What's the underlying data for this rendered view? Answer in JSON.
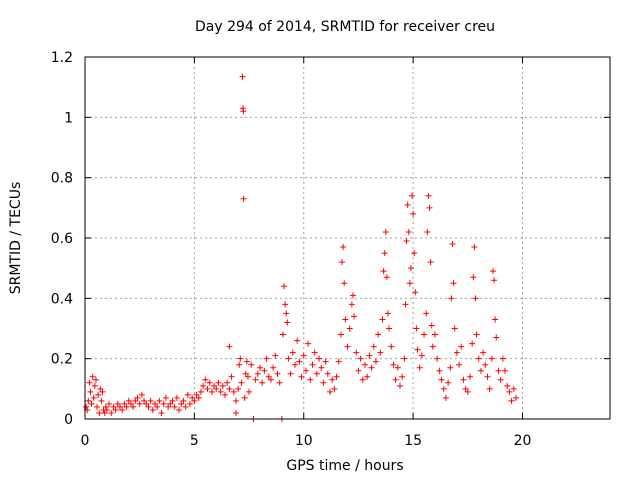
{
  "chart_data": {
    "type": "scatter",
    "title": "Day 294 of 2014, SRMTID for receiver creu",
    "xlabel": "GPS time / hours",
    "ylabel": "SRMTID / TECUs",
    "xlim": [
      0,
      24
    ],
    "ylim": [
      0,
      1.2
    ],
    "xticks": [
      0,
      5,
      10,
      15,
      20
    ],
    "yticks": [
      0,
      0.2,
      0.4,
      0.6,
      0.8,
      1,
      1.2
    ],
    "xtick_labels": [
      "0",
      "5",
      "10",
      "15",
      "20"
    ],
    "ytick_labels": [
      "0",
      "0.2",
      "0.4",
      "0.6",
      "0.8",
      "1",
      "1.2"
    ],
    "grid": true,
    "marker": "+",
    "series": [
      {
        "name": "SRMTID",
        "color": "#ff0000",
        "points": [
          [
            0.05,
            0.04
          ],
          [
            0.1,
            0.03
          ],
          [
            0.15,
            0.06
          ],
          [
            0.2,
            0.12
          ],
          [
            0.25,
            0.09
          ],
          [
            0.3,
            0.05
          ],
          [
            0.35,
            0.14
          ],
          [
            0.4,
            0.07
          ],
          [
            0.45,
            0.11
          ],
          [
            0.5,
            0.13
          ],
          [
            0.55,
            0.04
          ],
          [
            0.6,
            0.08
          ],
          [
            0.65,
            0.02
          ],
          [
            0.7,
            0.1
          ],
          [
            0.75,
            0.06
          ],
          [
            0.8,
            0.09
          ],
          [
            0.85,
            0.03
          ],
          [
            0.9,
            0.02
          ],
          [
            0.95,
            0.04
          ],
          [
            1.0,
            0.03
          ],
          [
            1.1,
            0.05
          ],
          [
            1.2,
            0.02
          ],
          [
            1.3,
            0.04
          ],
          [
            1.4,
            0.03
          ],
          [
            1.5,
            0.05
          ],
          [
            1.6,
            0.04
          ],
          [
            1.7,
            0.03
          ],
          [
            1.8,
            0.05
          ],
          [
            1.9,
            0.04
          ],
          [
            2.0,
            0.06
          ],
          [
            2.1,
            0.05
          ],
          [
            2.2,
            0.04
          ],
          [
            2.3,
            0.06
          ],
          [
            2.4,
            0.07
          ],
          [
            2.5,
            0.05
          ],
          [
            2.6,
            0.08
          ],
          [
            2.7,
            0.06
          ],
          [
            2.8,
            0.05
          ],
          [
            2.9,
            0.04
          ],
          [
            3.0,
            0.06
          ],
          [
            3.1,
            0.03
          ],
          [
            3.2,
            0.05
          ],
          [
            3.3,
            0.04
          ],
          [
            3.4,
            0.06
          ],
          [
            3.5,
            0.02
          ],
          [
            3.6,
            0.05
          ],
          [
            3.7,
            0.07
          ],
          [
            3.8,
            0.04
          ],
          [
            3.9,
            0.05
          ],
          [
            4.0,
            0.06
          ],
          [
            4.1,
            0.04
          ],
          [
            4.2,
            0.07
          ],
          [
            4.3,
            0.03
          ],
          [
            4.4,
            0.05
          ],
          [
            4.5,
            0.06
          ],
          [
            4.6,
            0.04
          ],
          [
            4.7,
            0.08
          ],
          [
            4.8,
            0.05
          ],
          [
            4.9,
            0.07
          ],
          [
            5.0,
            0.06
          ],
          [
            5.1,
            0.08
          ],
          [
            5.2,
            0.07
          ],
          [
            5.3,
            0.09
          ],
          [
            5.4,
            0.11
          ],
          [
            5.5,
            0.13
          ],
          [
            5.6,
            0.1
          ],
          [
            5.7,
            0.12
          ],
          [
            5.8,
            0.09
          ],
          [
            5.9,
            0.11
          ],
          [
            6.0,
            0.1
          ],
          [
            6.1,
            0.12
          ],
          [
            6.2,
            0.09
          ],
          [
            6.3,
            0.11
          ],
          [
            6.4,
            0.08
          ],
          [
            6.5,
            0.12
          ],
          [
            6.6,
            0.1
          ],
          [
            6.7,
            0.14
          ],
          [
            6.8,
            0.09
          ],
          [
            6.9,
            0.06
          ],
          [
            7.0,
            0.1
          ],
          [
            6.6,
            0.24
          ],
          [
            6.9,
            0.02
          ],
          [
            7.05,
            0.18
          ],
          [
            7.1,
            0.2
          ],
          [
            7.15,
            0.12
          ],
          [
            7.2,
            1.135
          ],
          [
            7.22,
            1.03
          ],
          [
            7.24,
            1.02
          ],
          [
            7.25,
            0.73
          ],
          [
            7.3,
            0.07
          ],
          [
            7.35,
            0.15
          ],
          [
            7.4,
            0.19
          ],
          [
            7.45,
            0.14
          ],
          [
            7.5,
            0.09
          ],
          [
            7.6,
            0.18
          ],
          [
            7.7,
            0.0
          ],
          [
            7.8,
            0.13
          ],
          [
            7.9,
            0.15
          ],
          [
            8.0,
            0.17
          ],
          [
            8.1,
            0.12
          ],
          [
            8.2,
            0.16
          ],
          [
            8.3,
            0.2
          ],
          [
            8.4,
            0.14
          ],
          [
            8.5,
            0.13
          ],
          [
            8.6,
            0.17
          ],
          [
            8.7,
            0.21
          ],
          [
            8.8,
            0.15
          ],
          [
            8.9,
            0.12
          ],
          [
            9.0,
            0.0
          ],
          [
            9.05,
            0.28
          ],
          [
            9.1,
            0.44
          ],
          [
            9.15,
            0.38
          ],
          [
            9.2,
            0.35
          ],
          [
            9.25,
            0.32
          ],
          [
            9.3,
            0.2
          ],
          [
            9.4,
            0.15
          ],
          [
            9.5,
            0.22
          ],
          [
            9.6,
            0.18
          ],
          [
            9.7,
            0.26
          ],
          [
            9.8,
            0.19
          ],
          [
            9.9,
            0.14
          ],
          [
            10.0,
            0.21
          ],
          [
            10.1,
            0.16
          ],
          [
            10.2,
            0.25
          ],
          [
            10.3,
            0.13
          ],
          [
            10.4,
            0.18
          ],
          [
            10.5,
            0.22
          ],
          [
            10.6,
            0.15
          ],
          [
            10.7,
            0.2
          ],
          [
            10.8,
            0.17
          ],
          [
            10.9,
            0.12
          ],
          [
            11.0,
            0.19
          ],
          [
            11.1,
            0.15
          ],
          [
            11.2,
            0.09
          ],
          [
            11.3,
            0.13
          ],
          [
            11.4,
            0.1
          ],
          [
            11.5,
            0.14
          ],
          [
            11.6,
            0.19
          ],
          [
            11.7,
            0.28
          ],
          [
            11.75,
            0.52
          ],
          [
            11.8,
            0.57
          ],
          [
            11.85,
            0.45
          ],
          [
            11.9,
            0.33
          ],
          [
            12.0,
            0.24
          ],
          [
            12.1,
            0.3
          ],
          [
            12.2,
            0.38
          ],
          [
            12.25,
            0.41
          ],
          [
            12.3,
            0.34
          ],
          [
            12.4,
            0.22
          ],
          [
            12.5,
            0.16
          ],
          [
            12.6,
            0.2
          ],
          [
            12.7,
            0.13
          ],
          [
            12.8,
            0.18
          ],
          [
            12.9,
            0.14
          ],
          [
            13.0,
            0.21
          ],
          [
            13.1,
            0.17
          ],
          [
            13.2,
            0.24
          ],
          [
            13.3,
            0.19
          ],
          [
            13.4,
            0.28
          ],
          [
            13.5,
            0.22
          ],
          [
            13.6,
            0.33
          ],
          [
            13.65,
            0.49
          ],
          [
            13.7,
            0.55
          ],
          [
            13.75,
            0.62
          ],
          [
            13.8,
            0.47
          ],
          [
            13.85,
            0.35
          ],
          [
            13.9,
            0.3
          ],
          [
            14.0,
            0.24
          ],
          [
            14.1,
            0.18
          ],
          [
            14.2,
            0.13
          ],
          [
            14.3,
            0.17
          ],
          [
            14.4,
            0.11
          ],
          [
            14.5,
            0.14
          ],
          [
            14.6,
            0.2
          ],
          [
            14.65,
            0.38
          ],
          [
            14.7,
            0.59
          ],
          [
            14.75,
            0.71
          ],
          [
            14.8,
            0.62
          ],
          [
            14.85,
            0.45
          ],
          [
            14.9,
            0.5
          ],
          [
            14.95,
            0.74
          ],
          [
            15.0,
            0.68
          ],
          [
            15.05,
            0.55
          ],
          [
            15.1,
            0.42
          ],
          [
            15.15,
            0.3
          ],
          [
            15.2,
            0.23
          ],
          [
            15.3,
            0.17
          ],
          [
            15.4,
            0.21
          ],
          [
            15.5,
            0.28
          ],
          [
            15.6,
            0.35
          ],
          [
            15.65,
            0.62
          ],
          [
            15.7,
            0.74
          ],
          [
            15.75,
            0.7
          ],
          [
            15.8,
            0.52
          ],
          [
            15.85,
            0.31
          ],
          [
            15.9,
            0.24
          ],
          [
            16.0,
            0.28
          ],
          [
            16.1,
            0.2
          ],
          [
            16.2,
            0.16
          ],
          [
            16.3,
            0.13
          ],
          [
            16.4,
            0.1
          ],
          [
            16.5,
            0.07
          ],
          [
            16.6,
            0.12
          ],
          [
            16.7,
            0.17
          ],
          [
            16.75,
            0.4
          ],
          [
            16.8,
            0.58
          ],
          [
            16.85,
            0.45
          ],
          [
            16.9,
            0.3
          ],
          [
            17.0,
            0.22
          ],
          [
            17.1,
            0.18
          ],
          [
            17.2,
            0.24
          ],
          [
            17.3,
            0.13
          ],
          [
            17.4,
            0.1
          ],
          [
            17.5,
            0.09
          ],
          [
            17.6,
            0.14
          ],
          [
            17.7,
            0.25
          ],
          [
            17.75,
            0.47
          ],
          [
            17.8,
            0.57
          ],
          [
            17.85,
            0.4
          ],
          [
            17.9,
            0.28
          ],
          [
            18.0,
            0.2
          ],
          [
            18.1,
            0.16
          ],
          [
            18.2,
            0.22
          ],
          [
            18.3,
            0.18
          ],
          [
            18.4,
            0.14
          ],
          [
            18.5,
            0.1
          ],
          [
            18.6,
            0.2
          ],
          [
            18.65,
            0.49
          ],
          [
            18.7,
            0.46
          ],
          [
            18.75,
            0.33
          ],
          [
            18.8,
            0.27
          ],
          [
            18.9,
            0.16
          ],
          [
            19.0,
            0.13
          ],
          [
            19.1,
            0.2
          ],
          [
            19.2,
            0.16
          ],
          [
            19.3,
            0.11
          ],
          [
            19.4,
            0.09
          ],
          [
            19.5,
            0.06
          ],
          [
            19.6,
            0.1
          ],
          [
            19.7,
            0.07
          ]
        ]
      }
    ]
  }
}
